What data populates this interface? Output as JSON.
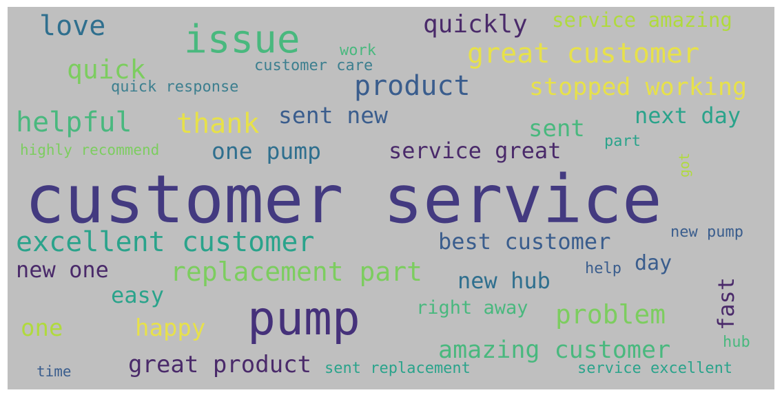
{
  "palette": {
    "background": "#bfbfbf",
    "colors": [
      "#433a80",
      "#45317a",
      "#3a5d8d",
      "#2f6f8e",
      "#3d7f8f",
      "#2aa38b",
      "#49b87e",
      "#7ccd5f",
      "#b0da3d",
      "#e7e14a",
      "#4a2a6a"
    ]
  },
  "words": [
    {
      "id": "customer-service",
      "text": "customer service",
      "color": "#433a80"
    },
    {
      "id": "pump",
      "text": "pump",
      "color": "#45317a"
    },
    {
      "id": "issue",
      "text": "issue",
      "color": "#49b87e"
    },
    {
      "id": "excellent-customer",
      "text": "excellent customer",
      "color": "#2aa38b"
    },
    {
      "id": "great-customer",
      "text": "great customer",
      "color": "#e7e14a"
    },
    {
      "id": "product",
      "text": "product",
      "color": "#3a5d8d"
    },
    {
      "id": "helpful",
      "text": "helpful",
      "color": "#49b87e"
    },
    {
      "id": "thank",
      "text": "thank",
      "color": "#e7e14a"
    },
    {
      "id": "replacement-part",
      "text": "replacement part",
      "color": "#7ccd5f"
    },
    {
      "id": "problem",
      "text": "problem",
      "color": "#7ccd5f"
    },
    {
      "id": "stopped-working",
      "text": "stopped working",
      "color": "#e7e14a"
    },
    {
      "id": "amazing-customer",
      "text": "amazing customer",
      "color": "#49b87e"
    },
    {
      "id": "quick",
      "text": "quick",
      "color": "#7ccd5f"
    },
    {
      "id": "love",
      "text": "love",
      "color": "#2f6f8e"
    },
    {
      "id": "quickly",
      "text": "quickly",
      "color": "#4a2a6a"
    },
    {
      "id": "great-product",
      "text": "great product",
      "color": "#4a2a6a"
    },
    {
      "id": "best-customer",
      "text": "best customer",
      "color": "#3a5d8d"
    },
    {
      "id": "sent-new",
      "text": "sent new",
      "color": "#3a5d8d"
    },
    {
      "id": "one-pump",
      "text": "one pump",
      "color": "#2f6f8e"
    },
    {
      "id": "service-great",
      "text": "service great",
      "color": "#4a2a6a"
    },
    {
      "id": "next-day",
      "text": "next day",
      "color": "#2aa38b"
    },
    {
      "id": "sent",
      "text": "sent",
      "color": "#49b87e"
    },
    {
      "id": "new-one",
      "text": "new one",
      "color": "#4a2a6a"
    },
    {
      "id": "new-hub",
      "text": "new hub",
      "color": "#2f6f8e"
    },
    {
      "id": "happy",
      "text": "happy",
      "color": "#e7e14a"
    },
    {
      "id": "easy",
      "text": "easy",
      "color": "#2aa38b"
    },
    {
      "id": "one",
      "text": "one",
      "color": "#b0da3d"
    },
    {
      "id": "fast",
      "text": "fast",
      "color": "#4a2a6a"
    },
    {
      "id": "service-amazing",
      "text": "service amazing",
      "color": "#b0da3d"
    },
    {
      "id": "right-away",
      "text": "right away",
      "color": "#49b87e"
    },
    {
      "id": "day",
      "text": "day",
      "color": "#3a5d8d"
    },
    {
      "id": "customer-care",
      "text": "customer care",
      "color": "#3d7f8f"
    },
    {
      "id": "quick-response",
      "text": "quick response",
      "color": "#3d7f8f"
    },
    {
      "id": "highly-recommend",
      "text": "highly recommend",
      "color": "#7ccd5f"
    },
    {
      "id": "work",
      "text": "work",
      "color": "#49b87e"
    },
    {
      "id": "part",
      "text": "part",
      "color": "#2aa38b"
    },
    {
      "id": "new-pump",
      "text": "new pump",
      "color": "#3a5d8d"
    },
    {
      "id": "help",
      "text": "help",
      "color": "#3a5d8d"
    },
    {
      "id": "sent-replacement",
      "text": "sent replacement",
      "color": "#2aa38b"
    },
    {
      "id": "service-excellent",
      "text": "service excellent",
      "color": "#2aa38b"
    },
    {
      "id": "time",
      "text": "time",
      "color": "#3a5d8d"
    },
    {
      "id": "hub",
      "text": "hub",
      "color": "#49b87e"
    },
    {
      "id": "got",
      "text": "got",
      "color": "#b0da3d"
    }
  ]
}
